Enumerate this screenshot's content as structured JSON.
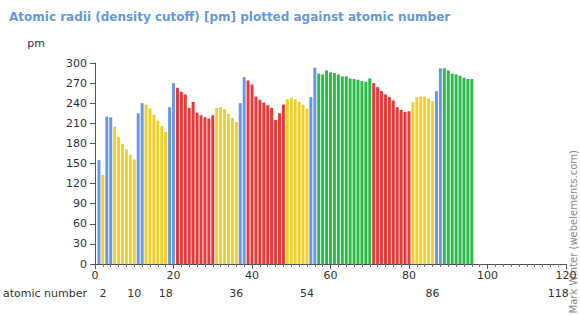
{
  "chart_data": {
    "type": "bar",
    "title": "Atomic radii (density cutoff) [pm] plotted against atomic number",
    "ylabel": "pm",
    "xlabel": "atomic number",
    "annotations": [
      "© Mark Winter (webelements.com)"
    ],
    "x": [
      1,
      2,
      3,
      4,
      5,
      6,
      7,
      8,
      9,
      10,
      11,
      12,
      13,
      14,
      15,
      16,
      17,
      18,
      19,
      20,
      21,
      22,
      23,
      24,
      25,
      26,
      27,
      28,
      29,
      30,
      31,
      32,
      33,
      34,
      35,
      36,
      37,
      38,
      39,
      40,
      41,
      42,
      43,
      44,
      45,
      46,
      47,
      48,
      49,
      50,
      51,
      52,
      53,
      54,
      55,
      56,
      57,
      58,
      59,
      60,
      61,
      62,
      63,
      64,
      65,
      66,
      67,
      68,
      69,
      70,
      71,
      72,
      73,
      74,
      75,
      76,
      77,
      78,
      79,
      80,
      81,
      82,
      83,
      84,
      85,
      86,
      87,
      88,
      89,
      90,
      91,
      92,
      93,
      94,
      95,
      96
    ],
    "values": [
      155,
      133,
      220,
      219,
      205,
      190,
      179,
      171,
      163,
      156,
      225,
      240,
      238,
      232,
      223,
      214,
      206,
      197,
      234,
      270,
      263,
      257,
      253,
      233,
      242,
      226,
      222,
      219,
      217,
      222,
      233,
      234,
      231,
      224,
      218,
      212,
      240,
      279,
      274,
      268,
      250,
      245,
      241,
      237,
      233,
      215,
      225,
      238,
      246,
      248,
      246,
      242,
      238,
      232,
      249,
      293,
      284,
      283,
      289,
      286,
      285,
      283,
      280,
      280,
      277,
      276,
      275,
      273,
      272,
      277,
      270,
      264,
      258,
      253,
      249,
      244,
      234,
      230,
      227,
      228,
      242,
      249,
      250,
      250,
      247,
      243,
      258,
      292,
      292,
      289,
      284,
      283,
      281,
      278,
      276,
      276
    ],
    "colors": [
      "#6a98e8",
      "#f0d02c",
      "#6a98e8",
      "#6a98e8",
      "#f0d02c",
      "#f0d02c",
      "#f0d02c",
      "#f0d02c",
      "#f0d02c",
      "#f0d02c",
      "#6a98e8",
      "#6a98e8",
      "#f0d02c",
      "#f0d02c",
      "#f0d02c",
      "#f0d02c",
      "#f0d02c",
      "#f0d02c",
      "#6a98e8",
      "#6a98e8",
      "#e83a3a",
      "#e83a3a",
      "#e83a3a",
      "#e83a3a",
      "#e83a3a",
      "#e83a3a",
      "#e83a3a",
      "#e83a3a",
      "#e83a3a",
      "#e83a3a",
      "#f0d02c",
      "#f0d02c",
      "#f0d02c",
      "#f0d02c",
      "#f0d02c",
      "#f0d02c",
      "#6a98e8",
      "#6a98e8",
      "#e83a3a",
      "#e83a3a",
      "#e83a3a",
      "#e83a3a",
      "#e83a3a",
      "#e83a3a",
      "#e83a3a",
      "#e83a3a",
      "#e83a3a",
      "#e83a3a",
      "#f0d02c",
      "#f0d02c",
      "#f0d02c",
      "#f0d02c",
      "#f0d02c",
      "#f0d02c",
      "#6a98e8",
      "#6a98e8",
      "#2cbb4a",
      "#2cbb4a",
      "#2cbb4a",
      "#2cbb4a",
      "#2cbb4a",
      "#2cbb4a",
      "#2cbb4a",
      "#2cbb4a",
      "#2cbb4a",
      "#2cbb4a",
      "#2cbb4a",
      "#2cbb4a",
      "#2cbb4a",
      "#2cbb4a",
      "#e83a3a",
      "#e83a3a",
      "#e83a3a",
      "#e83a3a",
      "#e83a3a",
      "#e83a3a",
      "#e83a3a",
      "#e83a3a",
      "#e83a3a",
      "#e83a3a",
      "#f0d02c",
      "#f0d02c",
      "#f0d02c",
      "#f0d02c",
      "#f0d02c",
      "#f0d02c",
      "#6a98e8",
      "#6a98e8",
      "#2cbb4a",
      "#2cbb4a",
      "#2cbb4a",
      "#2cbb4a",
      "#2cbb4a",
      "#2cbb4a",
      "#2cbb4a",
      "#2cbb4a"
    ],
    "xlim": [
      0,
      120
    ],
    "xticks": [
      0,
      20,
      40,
      60,
      80,
      100,
      120
    ],
    "x2ticks": [
      2,
      10,
      18,
      36,
      54,
      86,
      118
    ],
    "ylim": [
      0,
      300
    ],
    "yticks": [
      0,
      30,
      60,
      90,
      120,
      150,
      180,
      210,
      240,
      270,
      300
    ],
    "grid": false
  }
}
